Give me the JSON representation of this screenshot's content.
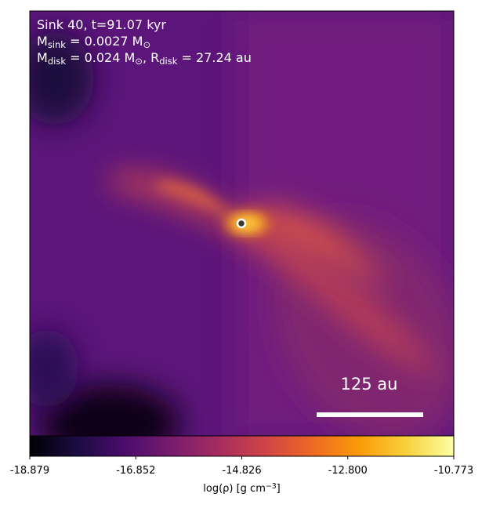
{
  "chart_data": {
    "type": "heatmap",
    "colormap": "inferno",
    "annotations": [
      [
        {
          "text": "Sink 40, t=91.07 kyr"
        }
      ],
      [
        {
          "text": "M"
        },
        {
          "sub": "sink"
        },
        {
          "text": " = 0.0027 M"
        },
        {
          "sub": "⊙"
        }
      ],
      [
        {
          "text": "M"
        },
        {
          "sub": "disk"
        },
        {
          "text": " = 0.024 M"
        },
        {
          "sub": "⊙"
        },
        {
          "text": ", R"
        },
        {
          "sub": "disk"
        },
        {
          "text": " = 27.24 au"
        }
      ]
    ],
    "scale_bar": {
      "label": "125 au"
    },
    "colorbar": {
      "clim": [
        -18.879,
        -10.773
      ],
      "ticks": [
        -18.879,
        -16.852,
        -14.826,
        -12.8,
        -10.773
      ],
      "tick_labels": [
        "-18.879",
        "-16.852",
        "-14.826",
        "-12.800",
        "-10.773"
      ],
      "label": [
        {
          "text": "log(ρ) [g cm"
        },
        {
          "sup": "−3"
        },
        {
          "text": "]"
        }
      ]
    }
  }
}
